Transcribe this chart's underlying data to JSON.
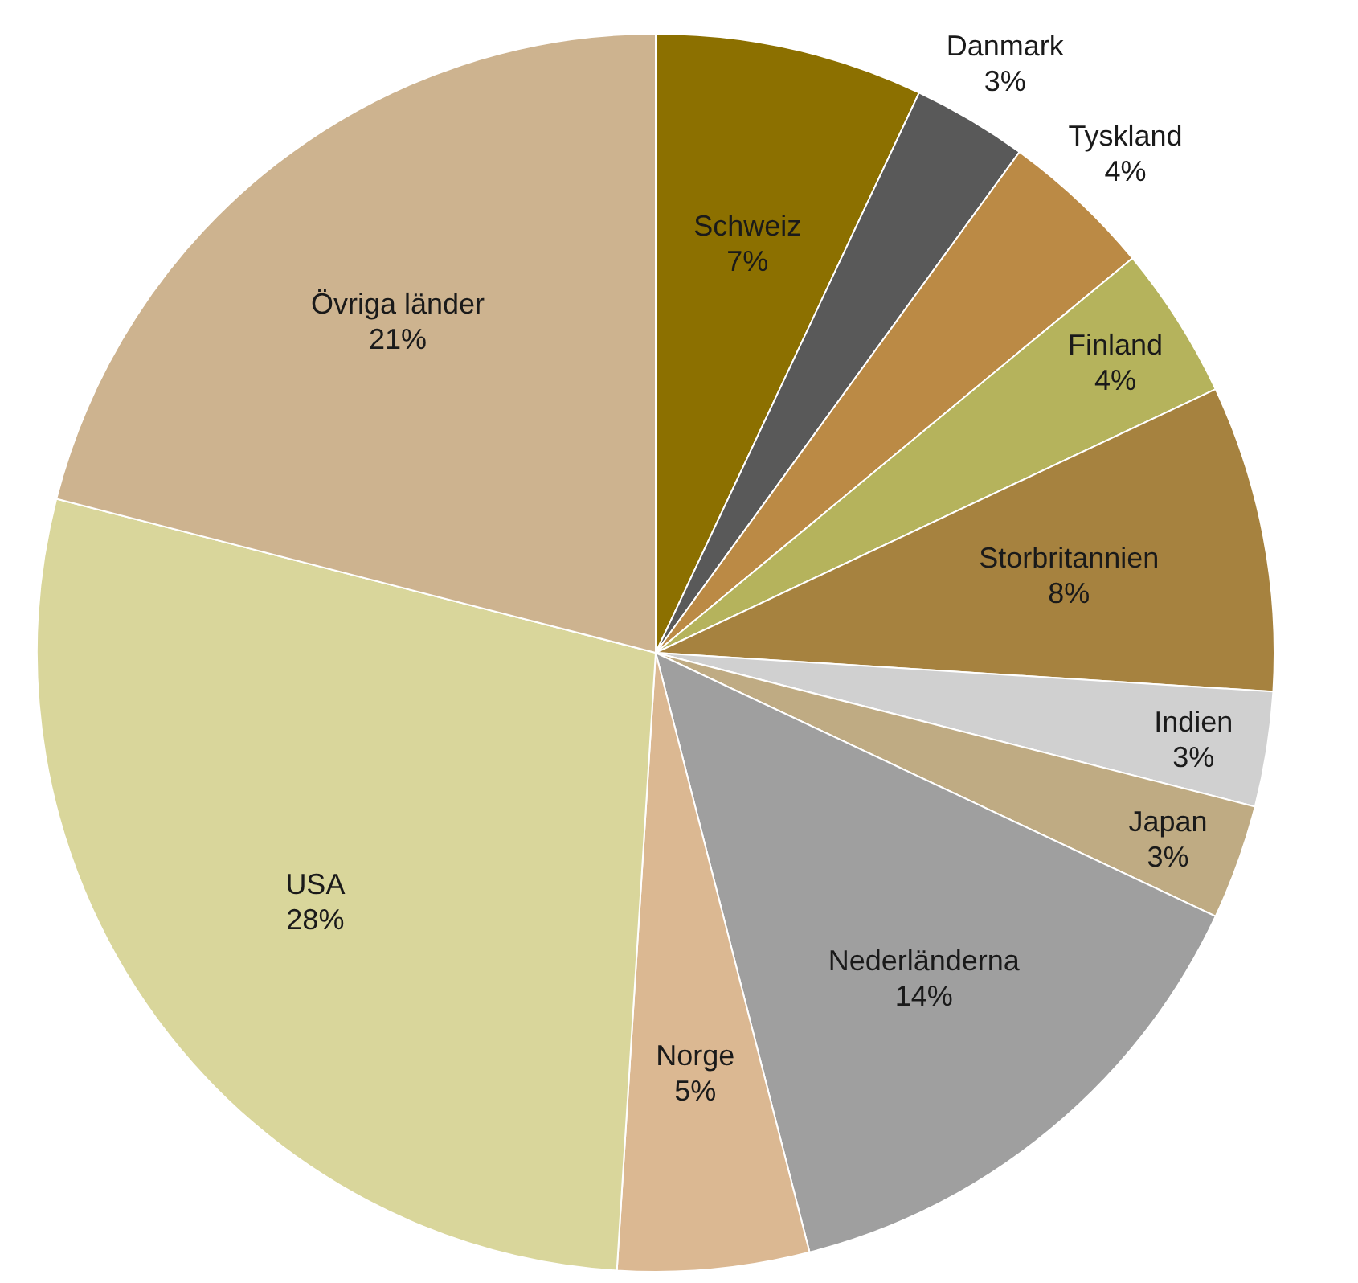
{
  "chart_data": {
    "type": "pie",
    "categories": [
      "Schweiz",
      "Danmark",
      "Tyskland",
      "Finland",
      "Storbritannien",
      "Indien",
      "Japan",
      "Nederländerna",
      "Norge",
      "USA",
      "Övriga länder"
    ],
    "values": [
      7,
      3,
      4,
      4,
      8,
      3,
      3,
      14,
      5,
      28,
      21
    ],
    "colors": [
      "#8c7000",
      "#595959",
      "#bb8a45",
      "#b5b35c",
      "#a6823f",
      "#d0d0d0",
      "#bfab83",
      "#9f9f9f",
      "#dbb892",
      "#d9d69b",
      "#cdb38f"
    ],
    "value_labels": [
      "7%",
      "3%",
      "4%",
      "4%",
      "8%",
      "3%",
      "3%",
      "14%",
      "5%",
      "28%",
      "21%"
    ]
  }
}
